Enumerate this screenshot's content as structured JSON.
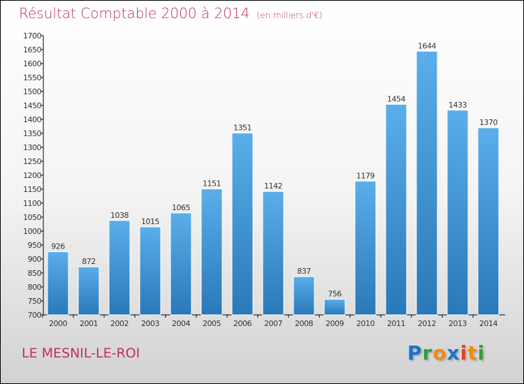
{
  "chart_data": {
    "type": "bar",
    "title": "Résultat Comptable 2000 à 2014",
    "subtitle": "(en milliers d'€)",
    "categories": [
      "2000",
      "2001",
      "2002",
      "2003",
      "2004",
      "2005",
      "2006",
      "2007",
      "2008",
      "2009",
      "2010",
      "2011",
      "2012",
      "2013",
      "2014"
    ],
    "values": [
      926,
      872,
      1038,
      1015,
      1065,
      1151,
      1351,
      1142,
      837,
      756,
      1179,
      1454,
      1644,
      1433,
      1370
    ],
    "ylim": [
      700,
      1700
    ],
    "ytick_step": 50,
    "xlabel": "",
    "ylabel": "",
    "grid": false,
    "bar_color_top": "#5aaeea",
    "bar_color_bottom": "#2a78b8"
  },
  "location": "LE MESNIL-LE-ROI",
  "logo": {
    "letters": [
      "P",
      "r",
      "o",
      "x",
      "i",
      "t",
      "i"
    ],
    "colors": [
      "#1a73c8",
      "#2e9e3a",
      "#f28a10",
      "#1a73c8",
      "#e8401a",
      "#f28a10",
      "#2e9e3a"
    ]
  }
}
